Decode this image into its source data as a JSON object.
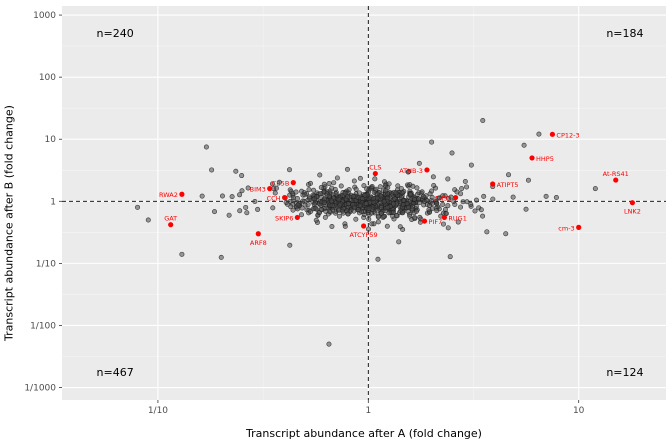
{
  "chart_data": {
    "type": "scatter",
    "title": "",
    "xlabel": "Transcript abundance after A (fold change)",
    "ylabel": "Transcript abundance after B (fold change)",
    "x_scale": "log10",
    "y_scale": "log10",
    "xlim": [
      0.035,
      26
    ],
    "ylim": [
      0.00063,
      1400
    ],
    "x_ticks": [
      {
        "value": 0.1,
        "label": "1/10"
      },
      {
        "value": 1,
        "label": "1"
      },
      {
        "value": 10,
        "label": "10"
      }
    ],
    "y_ticks": [
      {
        "value": 1000,
        "label": "1000"
      },
      {
        "value": 100,
        "label": "100"
      },
      {
        "value": 10,
        "label": "10"
      },
      {
        "value": 1,
        "label": "1"
      },
      {
        "value": 0.1,
        "label": "1/10"
      },
      {
        "value": 0.01,
        "label": "1/100"
      },
      {
        "value": 0.001,
        "label": "1/1000"
      }
    ],
    "reference_lines": {
      "x": 1,
      "y": 1,
      "style": "dashed"
    },
    "grid": true,
    "legend": "none",
    "quadrant_counts": [
      {
        "quadrant": "top-left",
        "label": "n=240",
        "fx": 0.088,
        "fy": 0.069
      },
      {
        "quadrant": "top-right",
        "label": "n=184",
        "fx": 0.932,
        "fy": 0.069
      },
      {
        "quadrant": "bottom-left",
        "label": "n=467",
        "fx": 0.088,
        "fy": 0.929
      },
      {
        "quadrant": "bottom-right",
        "label": "n=124",
        "fx": 0.932,
        "fy": 0.929
      }
    ],
    "highlighted_points": [
      {
        "label": "GAT",
        "x": 0.115,
        "y": 0.42,
        "pos": "above"
      },
      {
        "label": "RWA2",
        "x": 0.13,
        "y": 1.3,
        "pos": "left"
      },
      {
        "label": "ARF8",
        "x": 0.3,
        "y": 0.3,
        "pos": "below"
      },
      {
        "label": "BIM3",
        "x": 0.34,
        "y": 1.6,
        "pos": "left"
      },
      {
        "label": "CCH",
        "x": 0.4,
        "y": 1.15,
        "pos": "left"
      },
      {
        "label": "CB5B",
        "x": 0.44,
        "y": 2.0,
        "pos": "left"
      },
      {
        "label": "SKIP6",
        "x": 0.46,
        "y": 0.55,
        "pos": "left"
      },
      {
        "label": "ATCYP59",
        "x": 0.95,
        "y": 0.4,
        "pos": "below"
      },
      {
        "label": "CLS",
        "x": 1.08,
        "y": 2.8,
        "pos": "above"
      },
      {
        "label": "ATHB-3",
        "x": 1.9,
        "y": 3.2,
        "pos": "left"
      },
      {
        "label": "PIF7",
        "x": 1.85,
        "y": 0.48,
        "pos": "right"
      },
      {
        "label": "RUG1",
        "x": 2.3,
        "y": 0.55,
        "pos": "right"
      },
      {
        "label": "AHS1",
        "x": 2.6,
        "y": 1.15,
        "pos": "left"
      },
      {
        "label": "ATIPT5",
        "x": 3.9,
        "y": 1.9,
        "pos": "right"
      },
      {
        "label": "HHP5",
        "x": 6.0,
        "y": 5.0,
        "pos": "right"
      },
      {
        "label": "CP12-3",
        "x": 7.5,
        "y": 12,
        "pos": "right"
      },
      {
        "label": "cm-3",
        "x": 10,
        "y": 0.38,
        "pos": "left"
      },
      {
        "label": "At-RS41",
        "x": 15,
        "y": 2.2,
        "pos": "above"
      },
      {
        "label": "LNK2",
        "x": 18,
        "y": 0.95,
        "pos": "below"
      }
    ],
    "background_points_sample": [
      [
        3.5,
        20
      ],
      [
        0.65,
        0.005
      ],
      [
        0.17,
        7.5
      ],
      [
        0.08,
        0.8
      ],
      [
        0.09,
        0.5
      ],
      [
        0.2,
        0.125
      ],
      [
        5.5,
        8
      ],
      [
        2.5,
        6
      ],
      [
        4.5,
        0.3
      ],
      [
        0.18,
        3.2
      ],
      [
        0.13,
        0.14
      ],
      [
        12,
        1.6
      ],
      [
        2.0,
        9
      ],
      [
        0.25,
        2.6
      ],
      [
        7.0,
        1.2
      ]
    ],
    "background_cloud": {
      "seed": 7,
      "n_core": 640,
      "sd_logx": 0.17,
      "sd_logy": 0.115,
      "n_wide": 115,
      "sd_wide_logx": 0.45,
      "sd_wide_logy": 0.32
    },
    "colors": {
      "panel": "#EBEBEB",
      "grid_major": "#FFFFFF",
      "grid_minor": "#F5F5F5",
      "point_gray_fill": "#4d4d4d",
      "point_gray_stroke": "#1f1f1f",
      "point_red": "#FF0000",
      "axis_text": "#4D4D4D",
      "tick_mark": "#333333",
      "count_text": "#000000",
      "ref_line": "#000000"
    }
  }
}
